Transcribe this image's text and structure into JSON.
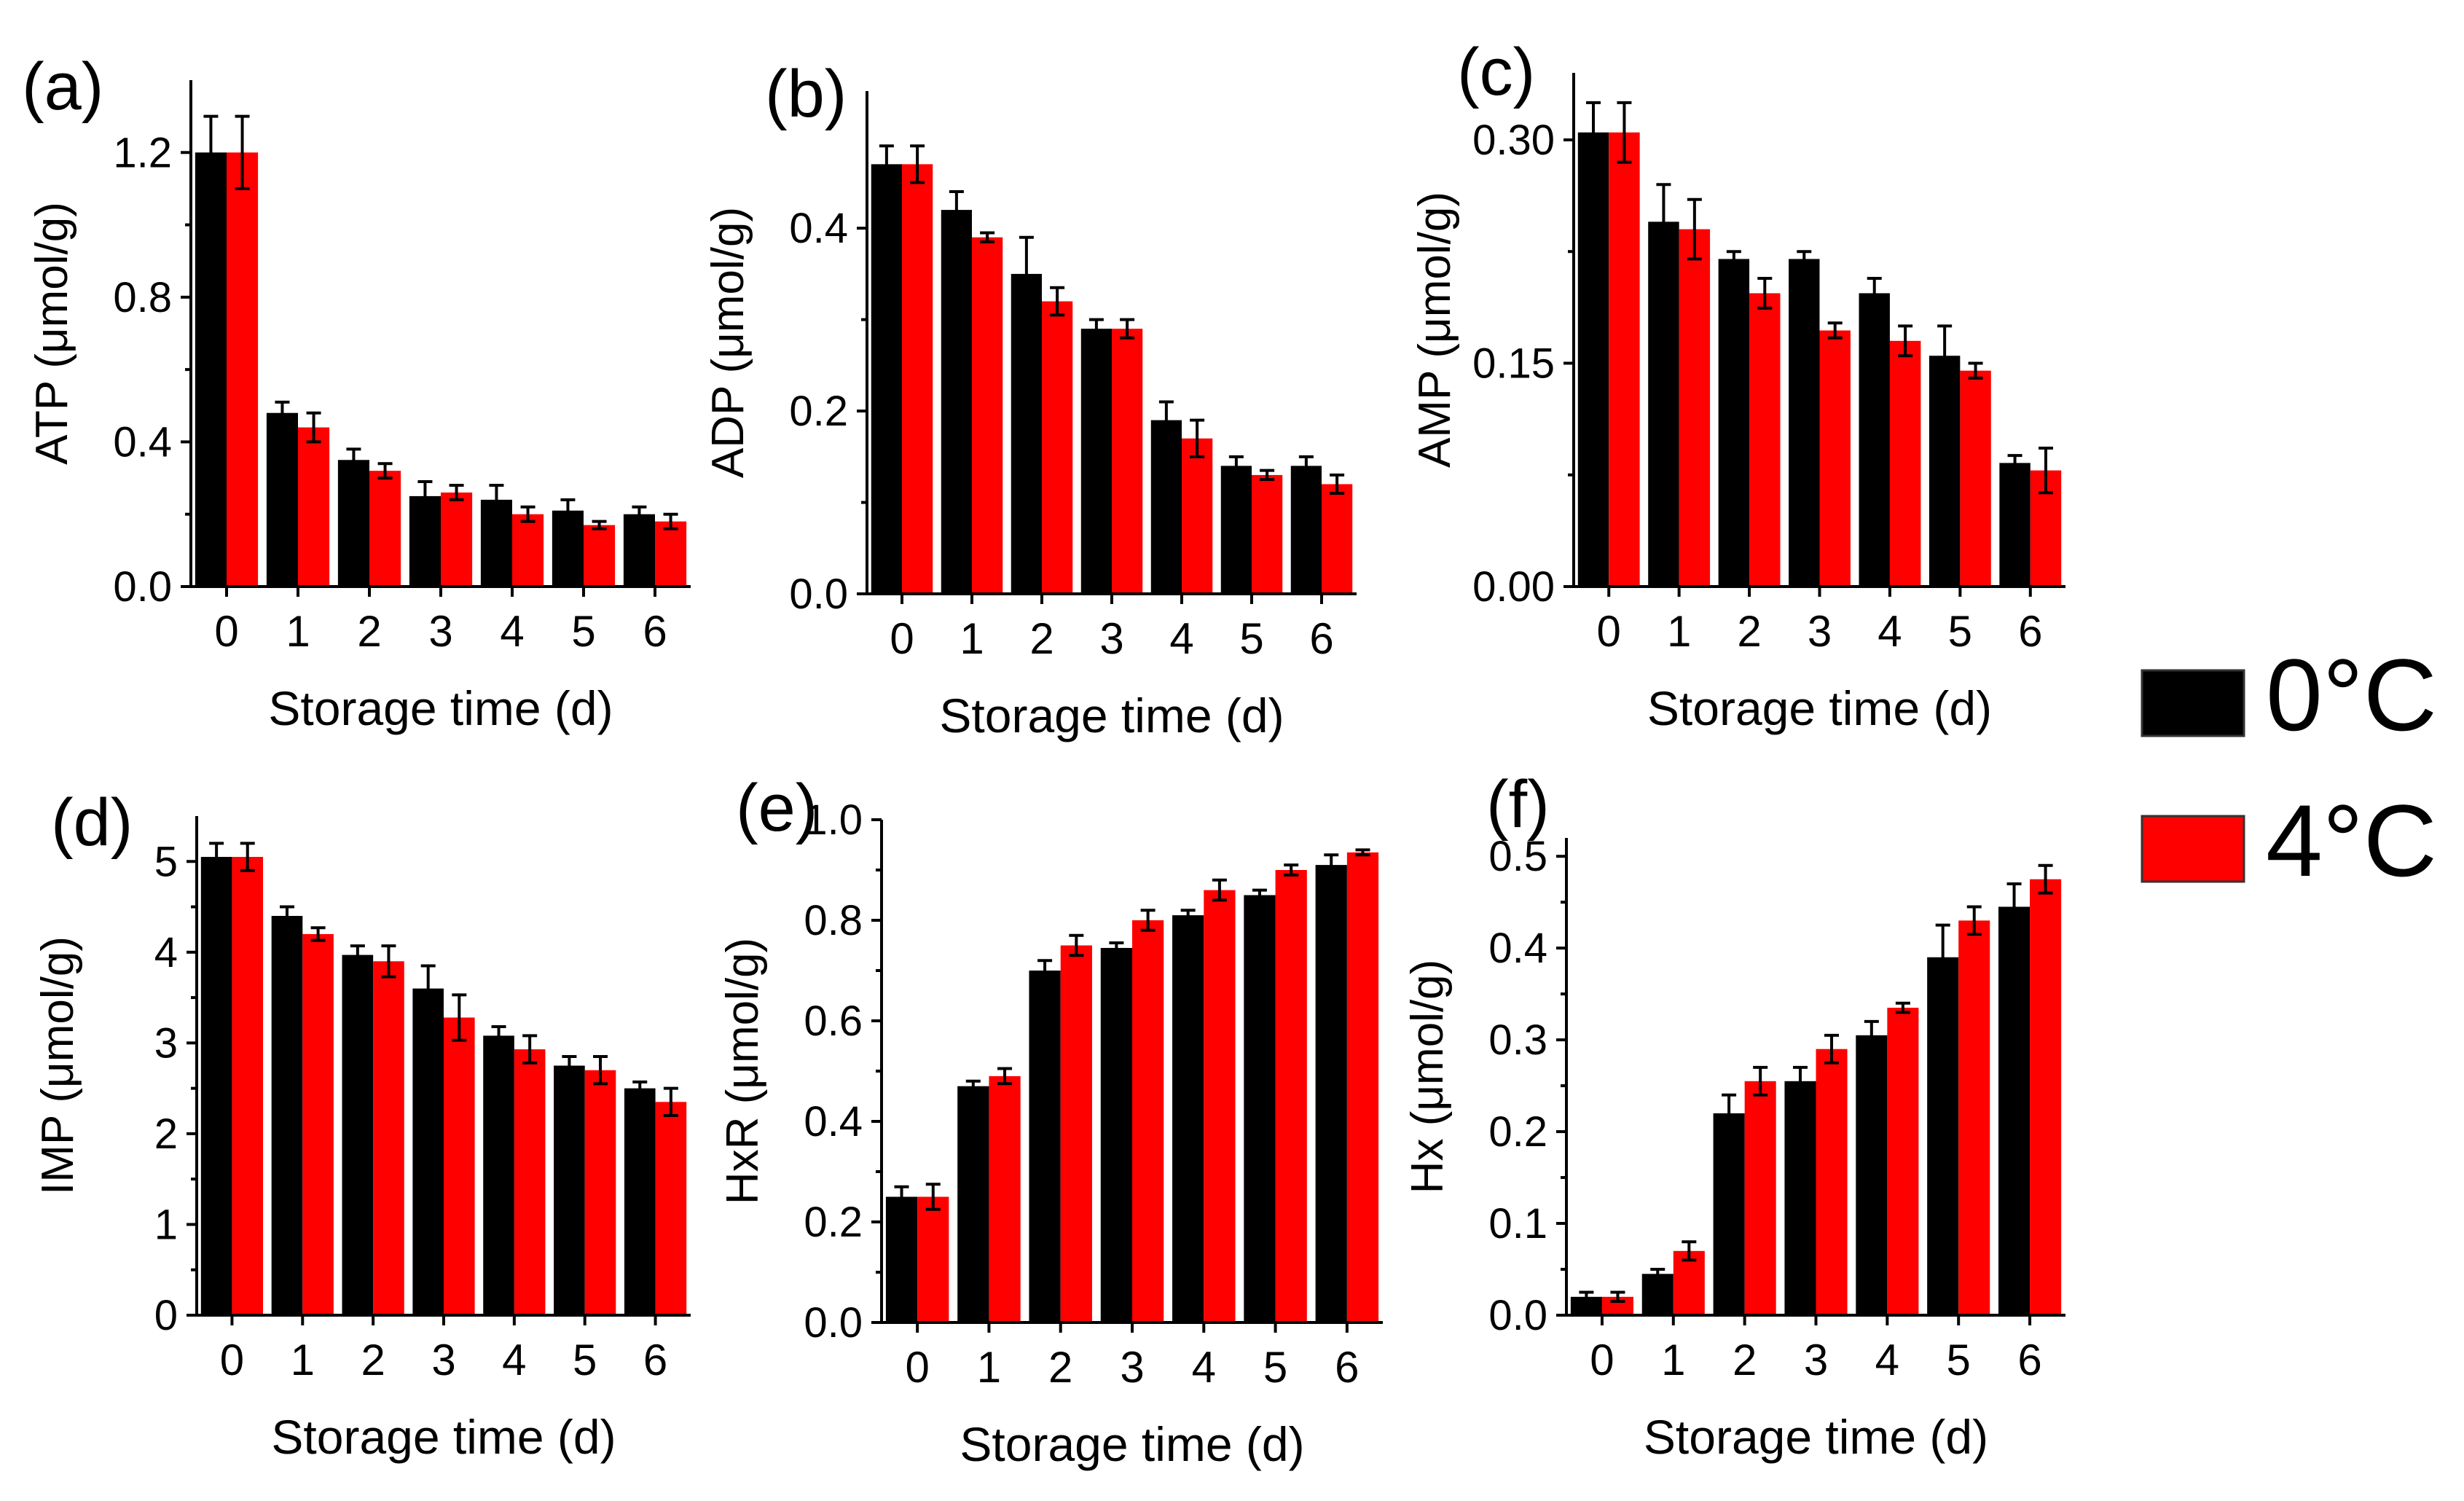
{
  "legend": {
    "items": [
      {
        "label": "0°C",
        "color": "#000000"
      },
      {
        "label": "4°C",
        "color": "#ff0000"
      }
    ]
  },
  "chart_data": [
    {
      "panel_label": "(a)",
      "type": "bar",
      "xlabel": "Storage time (d)",
      "ylabel": "ATP (μmol/g)",
      "categories": [
        "0",
        "1",
        "2",
        "3",
        "4",
        "5",
        "6"
      ],
      "ylim": [
        0,
        1.4
      ],
      "yticks": [
        0.0,
        0.4,
        0.8,
        1.2
      ],
      "ytick_labels": [
        "0.0",
        "0.4",
        "0.8",
        "1.2"
      ],
      "series": [
        {
          "name": "0°C",
          "color": "#000000",
          "values": [
            1.2,
            0.48,
            0.35,
            0.25,
            0.24,
            0.21,
            0.2
          ],
          "errors": [
            0.1,
            0.03,
            0.03,
            0.04,
            0.04,
            0.03,
            0.02
          ]
        },
        {
          "name": "4°C",
          "color": "#ff0000",
          "values": [
            1.2,
            0.44,
            0.32,
            0.26,
            0.2,
            0.17,
            0.18
          ],
          "errors": [
            0.1,
            0.04,
            0.02,
            0.02,
            0.02,
            0.01,
            0.02
          ]
        }
      ]
    },
    {
      "panel_label": "(b)",
      "type": "bar",
      "xlabel": "Storage time (d)",
      "ylabel": "ADP (μmol/g)",
      "categories": [
        "0",
        "1",
        "2",
        "3",
        "4",
        "5",
        "6"
      ],
      "ylim": [
        0,
        0.55
      ],
      "yticks": [
        0.0,
        0.2,
        0.4
      ],
      "ytick_labels": [
        "0.0",
        "0.2",
        "0.4"
      ],
      "series": [
        {
          "name": "0°C",
          "color": "#000000",
          "values": [
            0.47,
            0.42,
            0.35,
            0.29,
            0.19,
            0.14,
            0.14
          ],
          "errors": [
            0.02,
            0.02,
            0.04,
            0.01,
            0.02,
            0.01,
            0.01
          ]
        },
        {
          "name": "4°C",
          "color": "#ff0000",
          "values": [
            0.47,
            0.39,
            0.32,
            0.29,
            0.17,
            0.13,
            0.12
          ],
          "errors": [
            0.02,
            0.005,
            0.015,
            0.01,
            0.02,
            0.005,
            0.01
          ]
        }
      ]
    },
    {
      "panel_label": "(c)",
      "type": "bar",
      "xlabel": "Storage time (d)",
      "ylabel": "AMP (μmol/g)",
      "categories": [
        "0",
        "1",
        "2",
        "3",
        "4",
        "5",
        "6"
      ],
      "ylim": [
        0,
        0.345
      ],
      "yticks": [
        0.0,
        0.15,
        0.3
      ],
      "ytick_labels": [
        "0.00",
        "0.15",
        "0.30"
      ],
      "series": [
        {
          "name": "0°C",
          "color": "#000000",
          "values": [
            0.305,
            0.245,
            0.22,
            0.22,
            0.197,
            0.155,
            0.083
          ],
          "errors": [
            0.02,
            0.025,
            0.005,
            0.005,
            0.01,
            0.02,
            0.005
          ]
        },
        {
          "name": "4°C",
          "color": "#ff0000",
          "values": [
            0.305,
            0.24,
            0.197,
            0.172,
            0.165,
            0.145,
            0.078
          ],
          "errors": [
            0.02,
            0.02,
            0.01,
            0.005,
            0.01,
            0.005,
            0.015
          ]
        }
      ]
    },
    {
      "panel_label": "(d)",
      "type": "bar",
      "xlabel": "Storage time (d)",
      "ylabel": "IMP (μmol/g)",
      "categories": [
        "0",
        "1",
        "2",
        "3",
        "4",
        "5",
        "6"
      ],
      "ylim": [
        0,
        5.5
      ],
      "yticks": [
        0,
        1,
        2,
        3,
        4,
        5
      ],
      "ytick_labels": [
        "0",
        "1",
        "2",
        "3",
        "4",
        "5"
      ],
      "series": [
        {
          "name": "0°C",
          "color": "#000000",
          "values": [
            5.05,
            4.4,
            3.97,
            3.6,
            3.08,
            2.75,
            2.5
          ],
          "errors": [
            0.15,
            0.1,
            0.1,
            0.25,
            0.1,
            0.1,
            0.07
          ]
        },
        {
          "name": "4°C",
          "color": "#ff0000",
          "values": [
            5.05,
            4.2,
            3.9,
            3.28,
            2.93,
            2.7,
            2.35
          ],
          "errors": [
            0.15,
            0.07,
            0.17,
            0.25,
            0.15,
            0.15,
            0.15
          ]
        }
      ]
    },
    {
      "panel_label": "(e)",
      "type": "bar",
      "xlabel": "Storage time (d)",
      "ylabel": "HxR (μmol/g)",
      "categories": [
        "0",
        "1",
        "2",
        "3",
        "4",
        "5",
        "6"
      ],
      "ylim": [
        0,
        1.0
      ],
      "yticks": [
        0.0,
        0.2,
        0.4,
        0.6,
        0.8,
        1.0
      ],
      "ytick_labels": [
        "0.0",
        "0.2",
        "0.4",
        "0.6",
        "0.8",
        "1.0"
      ],
      "series": [
        {
          "name": "0°C",
          "color": "#000000",
          "values": [
            0.25,
            0.47,
            0.7,
            0.745,
            0.81,
            0.85,
            0.91
          ],
          "errors": [
            0.02,
            0.01,
            0.02,
            0.01,
            0.01,
            0.01,
            0.02
          ]
        },
        {
          "name": "4°C",
          "color": "#ff0000",
          "values": [
            0.25,
            0.49,
            0.75,
            0.8,
            0.86,
            0.9,
            0.935
          ],
          "errors": [
            0.025,
            0.015,
            0.02,
            0.02,
            0.02,
            0.01,
            0.005
          ]
        }
      ]
    },
    {
      "panel_label": "(f)",
      "type": "bar",
      "xlabel": "Storage time (d)",
      "ylabel": "Hx (μmol/g)",
      "categories": [
        "0",
        "1",
        "2",
        "3",
        "4",
        "5",
        "6"
      ],
      "ylim": [
        0,
        0.52
      ],
      "yticks": [
        0.0,
        0.1,
        0.2,
        0.3,
        0.4,
        0.5
      ],
      "ytick_labels": [
        "0.0",
        "0.1",
        "0.2",
        "0.3",
        "0.4",
        "0.5"
      ],
      "series": [
        {
          "name": "0°C",
          "color": "#000000",
          "values": [
            0.02,
            0.045,
            0.22,
            0.255,
            0.305,
            0.39,
            0.445
          ],
          "errors": [
            0.005,
            0.005,
            0.02,
            0.015,
            0.015,
            0.035,
            0.025
          ]
        },
        {
          "name": "4°C",
          "color": "#ff0000",
          "values": [
            0.02,
            0.07,
            0.255,
            0.29,
            0.335,
            0.43,
            0.475
          ],
          "errors": [
            0.005,
            0.01,
            0.015,
            0.015,
            0.005,
            0.015,
            0.015
          ]
        }
      ]
    }
  ]
}
